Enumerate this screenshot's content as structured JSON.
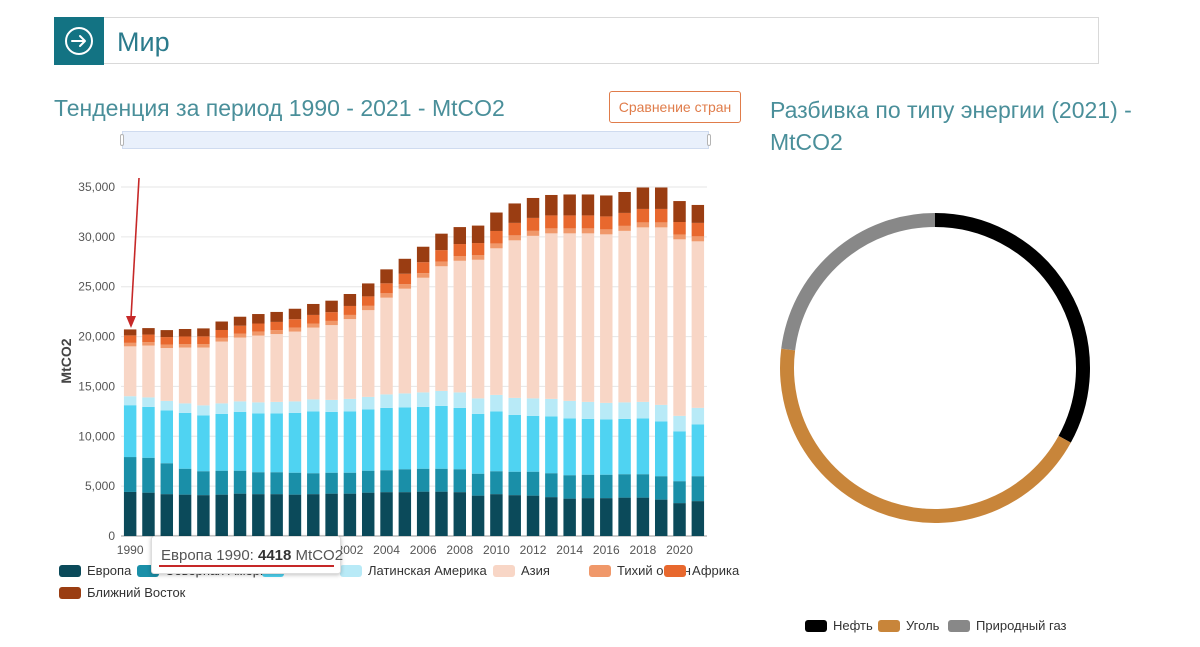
{
  "header": {
    "title": "Мир",
    "icon": "arrow-right-circle-icon",
    "accent": "#137383"
  },
  "left_panel": {
    "title": "Тенденция за период 1990 - 2021 - MtCO2",
    "compare_button": "Сравнение стран",
    "tooltip": {
      "label": "Европа 1990:",
      "value": "4418",
      "unit": "MtCO2"
    }
  },
  "right_panel": {
    "title_line1": "Разбивка по типу энергии (2021) -",
    "title_line2": "MtCO2"
  },
  "chart_data": [
    {
      "type": "bar",
      "stacked": true,
      "ylabel": "MtCO2",
      "ylim": [
        0,
        35000
      ],
      "yticks": [
        "0",
        "5,000",
        "10,000",
        "15,000",
        "20,000",
        "25,000",
        "30,000",
        "35,000"
      ],
      "xtick_labels": [
        "1990",
        "",
        "",
        "",
        "",
        "",
        "2002",
        "2004",
        "2006",
        "2008",
        "2010",
        "2012",
        "2014",
        "2016",
        "2018",
        "2020"
      ],
      "legend_position": "bottom",
      "grid": true,
      "categories": [
        "1990",
        "1991",
        "1992",
        "1993",
        "1994",
        "1995",
        "1996",
        "1997",
        "1998",
        "1999",
        "2000",
        "2001",
        "2002",
        "2003",
        "2004",
        "2005",
        "2006",
        "2007",
        "2008",
        "2009",
        "2010",
        "2011",
        "2012",
        "2013",
        "2014",
        "2015",
        "2016",
        "2017",
        "2018",
        "2019",
        "2020",
        "2021"
      ],
      "series": [
        {
          "name": "Европа",
          "color": "#0b4a5a",
          "values": [
            4418,
            4350,
            4200,
            4150,
            4100,
            4150,
            4250,
            4200,
            4200,
            4150,
            4200,
            4250,
            4250,
            4350,
            4400,
            4400,
            4450,
            4450,
            4400,
            4050,
            4200,
            4100,
            4050,
            3900,
            3750,
            3800,
            3800,
            3850,
            3850,
            3650,
            3300,
            3500
          ]
        },
        {
          "name": "Северная Америка",
          "color": "#1a8fa8",
          "values": [
            3500,
            3500,
            3100,
            2600,
            2400,
            2400,
            2300,
            2200,
            2200,
            2200,
            2100,
            2100,
            2100,
            2200,
            2200,
            2300,
            2300,
            2300,
            2300,
            2200,
            2300,
            2350,
            2400,
            2400,
            2350,
            2350,
            2350,
            2350,
            2350,
            2350,
            2200,
            2500
          ]
        },
        {
          "name": "",
          "color": "#4fd3f2",
          "values": [
            5200,
            5100,
            5300,
            5600,
            5600,
            5700,
            5900,
            5900,
            5900,
            6000,
            6200,
            6100,
            6150,
            6150,
            6250,
            6200,
            6200,
            6300,
            6150,
            6000,
            6000,
            5700,
            5600,
            5700,
            5700,
            5600,
            5550,
            5550,
            5600,
            5500,
            5000,
            5200
          ]
        },
        {
          "name": "Латинская Америка",
          "color": "#b8eaf7",
          "values": [
            900,
            950,
            950,
            950,
            1000,
            1050,
            1050,
            1100,
            1150,
            1150,
            1200,
            1200,
            1250,
            1250,
            1350,
            1400,
            1450,
            1500,
            1550,
            1550,
            1650,
            1700,
            1750,
            1750,
            1750,
            1700,
            1650,
            1650,
            1650,
            1650,
            1550,
            1650
          ]
        },
        {
          "name": "Азия",
          "color": "#f8d6c6",
          "values": [
            5000,
            5200,
            5300,
            5600,
            5800,
            6200,
            6400,
            6700,
            6800,
            7000,
            7200,
            7500,
            8000,
            8700,
            9700,
            10500,
            11500,
            12500,
            13200,
            13900,
            14700,
            15800,
            16300,
            16600,
            16800,
            16900,
            16900,
            17200,
            17500,
            17800,
            17700,
            16700
          ]
        },
        {
          "name": "Тихий океан",
          "color": "#f0986a",
          "values": [
            350,
            350,
            350,
            350,
            350,
            370,
            380,
            390,
            390,
            400,
            410,
            420,
            420,
            430,
            440,
            450,
            460,
            470,
            480,
            480,
            490,
            500,
            500,
            500,
            500,
            500,
            500,
            500,
            500,
            500,
            490,
            500
          ]
        },
        {
          "name": "Африка",
          "color": "#e8682e",
          "values": [
            750,
            750,
            750,
            760,
            770,
            790,
            810,
            820,
            830,
            840,
            860,
            880,
            900,
            950,
            1000,
            1050,
            1100,
            1150,
            1200,
            1200,
            1250,
            1250,
            1300,
            1300,
            1300,
            1300,
            1300,
            1300,
            1350,
            1350,
            1250,
            1350
          ]
        },
        {
          "name": "Ближний Восток",
          "color": "#9a3d12",
          "values": [
            600,
            650,
            700,
            750,
            800,
            850,
            900,
            950,
            1000,
            1050,
            1100,
            1150,
            1200,
            1300,
            1400,
            1500,
            1550,
            1650,
            1700,
            1750,
            1850,
            1950,
            2000,
            2050,
            2100,
            2100,
            2100,
            2100,
            2150,
            2150,
            2100,
            1800
          ]
        }
      ]
    },
    {
      "type": "pie",
      "donut": true,
      "legend_position": "bottom",
      "categories": [
        "Нефть",
        "Уголь",
        "Природный газ"
      ],
      "values": [
        33,
        44,
        23
      ],
      "colors": [
        "#000000",
        "#c8853a",
        "#888888"
      ]
    }
  ]
}
